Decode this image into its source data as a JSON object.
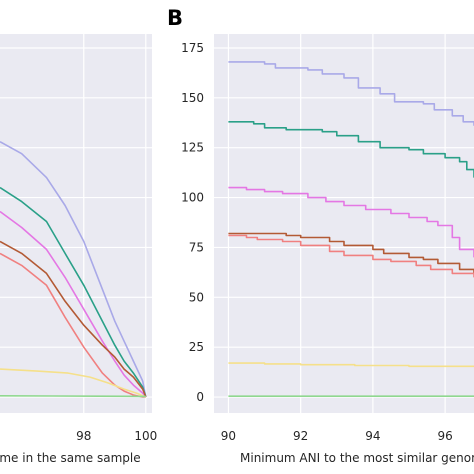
{
  "chart_data": [
    {
      "type": "line",
      "panel_label": "",
      "xlabel": "ome in the same sample",
      "xlim": [
        95.3,
        100.2
      ],
      "ylim": [
        -8,
        182
      ],
      "xticks": [
        98,
        100
      ],
      "yticks": [],
      "grid": true,
      "series": [
        {
          "color": "#a9a9e8",
          "x": [
            95.3,
            96.0,
            96.8,
            97.4,
            98.0,
            98.6,
            99.0,
            99.3,
            99.6,
            99.9,
            100.0
          ],
          "y": [
            128,
            122,
            110,
            96,
            78,
            54,
            38,
            28,
            18,
            8,
            0
          ]
        },
        {
          "color": "#2aa088",
          "x": [
            95.3,
            96.0,
            96.8,
            97.4,
            98.0,
            98.6,
            99.0,
            99.3,
            99.6,
            99.9,
            100.0
          ],
          "y": [
            105,
            98,
            88,
            72,
            56,
            38,
            26,
            18,
            12,
            5,
            0
          ]
        },
        {
          "color": "#e477e4",
          "x": [
            95.3,
            96.0,
            96.8,
            97.4,
            98.0,
            98.6,
            99.0,
            99.3,
            99.6,
            99.9,
            100.0
          ],
          "y": [
            93,
            85,
            74,
            60,
            44,
            28,
            18,
            11,
            6,
            2,
            0
          ]
        },
        {
          "color": "#b35a35",
          "x": [
            95.3,
            96.0,
            96.8,
            97.4,
            98.0,
            98.6,
            99.0,
            99.3,
            99.6,
            99.9,
            100.0
          ],
          "y": [
            78,
            72,
            62,
            48,
            36,
            26,
            20,
            14,
            10,
            4,
            0
          ]
        },
        {
          "color": "#f08080",
          "x": [
            95.3,
            96.0,
            96.8,
            97.4,
            98.0,
            98.6,
            99.0,
            99.3,
            99.6,
            99.9,
            100.0
          ],
          "y": [
            72,
            66,
            56,
            40,
            25,
            12,
            6,
            3,
            1,
            0,
            0
          ]
        },
        {
          "color": "#f5e08a",
          "x": [
            95.3,
            96.5,
            97.5,
            98.2,
            98.8,
            99.3,
            99.7,
            100.0
          ],
          "y": [
            14,
            13,
            12,
            10,
            7,
            4,
            2,
            0
          ]
        },
        {
          "color": "#8fd88f",
          "x": [
            95.3,
            97.0,
            98.5,
            100.0
          ],
          "y": [
            0.6,
            0.5,
            0.4,
            0.3
          ]
        }
      ]
    },
    {
      "type": "line",
      "panel_label": "B",
      "xlabel": "Minimum ANI to the most similar genom",
      "xlim": [
        89.6,
        96.8
      ],
      "ylim": [
        -8,
        182
      ],
      "xticks": [
        90,
        92,
        94,
        96
      ],
      "yticks": [
        0,
        25,
        50,
        75,
        100,
        125,
        150,
        175
      ],
      "grid": true,
      "series": [
        {
          "color": "#a9a9e8",
          "step": true,
          "x": [
            90,
            91.0,
            91.3,
            92.2,
            92.6,
            93.2,
            93.6,
            94.2,
            94.6,
            95.4,
            95.7,
            96.2,
            96.5,
            96.8
          ],
          "y": [
            168,
            167,
            165,
            164,
            162,
            160,
            155,
            152,
            148,
            147,
            144,
            141,
            138,
            136
          ]
        },
        {
          "color": "#2aa088",
          "step": true,
          "x": [
            90,
            90.7,
            91.0,
            91.6,
            92.6,
            93.0,
            93.6,
            94.2,
            95.0,
            95.4,
            96.0,
            96.4,
            96.6,
            96.8
          ],
          "y": [
            138,
            137,
            135,
            134,
            133,
            131,
            128,
            125,
            124,
            122,
            120,
            118,
            114,
            110
          ]
        },
        {
          "color": "#e477e4",
          "step": true,
          "x": [
            90,
            90.5,
            91.0,
            91.5,
            92.2,
            92.7,
            93.2,
            93.8,
            94.5,
            95.0,
            95.5,
            95.8,
            96.2,
            96.4,
            96.8
          ],
          "y": [
            105,
            104,
            103,
            102,
            100,
            98,
            96,
            94,
            92,
            90,
            88,
            86,
            80,
            74,
            70
          ]
        },
        {
          "color": "#b35a35",
          "step": true,
          "x": [
            90,
            91.6,
            92.0,
            92.8,
            93.2,
            94.0,
            94.3,
            95.0,
            95.4,
            95.8,
            96.4,
            96.8
          ],
          "y": [
            82,
            81,
            80,
            78,
            76,
            74,
            72,
            70,
            69,
            67,
            64,
            62
          ]
        },
        {
          "color": "#f08080",
          "step": true,
          "x": [
            90,
            90.5,
            90.8,
            91.5,
            92.0,
            92.8,
            93.2,
            94.0,
            94.5,
            95.2,
            95.6,
            96.2,
            96.8
          ],
          "y": [
            81,
            80,
            79,
            78,
            76,
            73,
            71,
            69,
            68,
            66,
            64,
            62,
            60
          ]
        },
        {
          "color": "#f5e08a",
          "step": true,
          "x": [
            90,
            91.0,
            92.0,
            93.5,
            95.0,
            96.8
          ],
          "y": [
            17,
            16.6,
            16.2,
            15.8,
            15.4,
            15
          ]
        },
        {
          "color": "#8fd88f",
          "step": true,
          "x": [
            90,
            96.8
          ],
          "y": [
            0.4,
            0.4
          ]
        }
      ]
    }
  ]
}
